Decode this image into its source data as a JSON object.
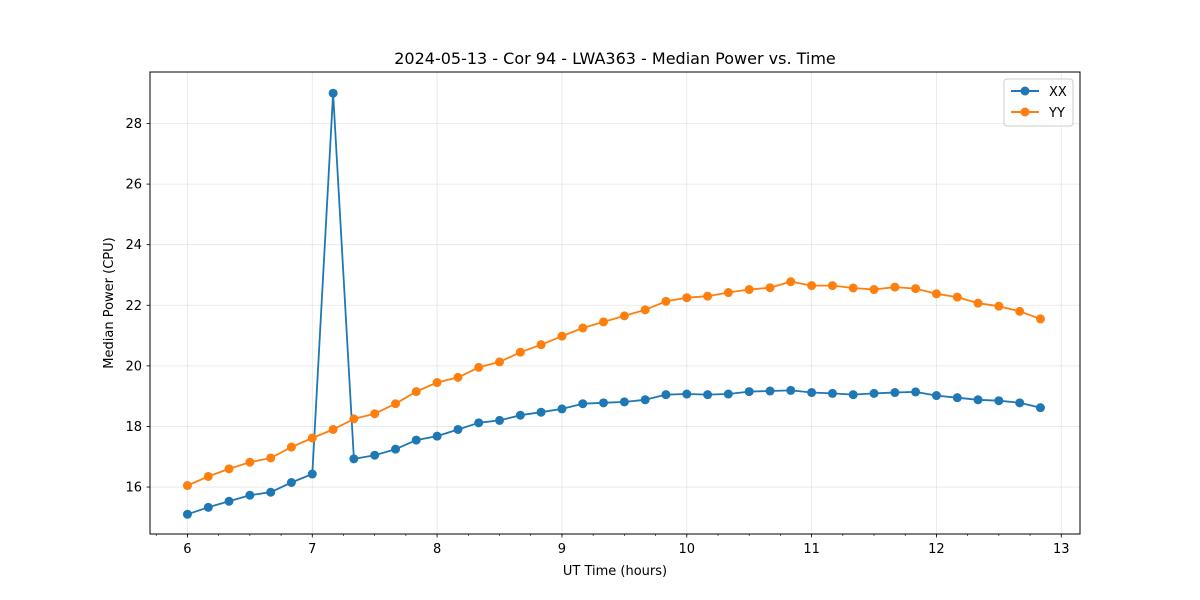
{
  "chart_data": {
    "type": "line",
    "title": "2024-05-13 - Cor 94 - LWA363 - Median Power vs. Time",
    "xlabel": "UT Time (hours)",
    "ylabel": "Median Power (CPU)",
    "xlim": [
      5.7,
      13.15
    ],
    "ylim": [
      14.45,
      29.7
    ],
    "xticks": [
      6,
      7,
      8,
      9,
      10,
      11,
      12,
      13
    ],
    "yticks": [
      16,
      18,
      20,
      22,
      24,
      26,
      28
    ],
    "x_minor_step": 0.25,
    "grid": true,
    "legend_position": "top-right",
    "x": [
      6.0,
      6.167,
      6.333,
      6.5,
      6.667,
      6.833,
      7.0,
      7.167,
      7.333,
      7.5,
      7.667,
      7.833,
      8.0,
      8.167,
      8.333,
      8.5,
      8.667,
      8.833,
      9.0,
      9.167,
      9.333,
      9.5,
      9.667,
      9.833,
      10.0,
      10.167,
      10.333,
      10.5,
      10.667,
      10.833,
      11.0,
      11.167,
      11.333,
      11.5,
      11.667,
      11.833,
      12.0,
      12.167,
      12.333,
      12.5,
      12.667,
      12.833
    ],
    "series": [
      {
        "name": "XX",
        "color": "#1f77b4",
        "values": [
          15.1,
          15.33,
          15.53,
          15.73,
          15.83,
          16.15,
          16.43,
          29.0,
          16.93,
          17.05,
          17.25,
          17.55,
          17.68,
          17.9,
          18.12,
          18.2,
          18.37,
          18.47,
          18.58,
          18.75,
          18.78,
          18.81,
          18.88,
          19.05,
          19.07,
          19.05,
          19.07,
          19.15,
          19.17,
          19.19,
          19.12,
          19.09,
          19.05,
          19.09,
          19.12,
          19.14,
          19.02,
          18.95,
          18.88,
          18.85,
          18.78,
          18.62
        ]
      },
      {
        "name": "YY",
        "color": "#ff7f0e",
        "values": [
          16.05,
          16.35,
          16.6,
          16.82,
          16.96,
          17.32,
          17.62,
          17.9,
          18.25,
          18.42,
          18.75,
          19.15,
          19.45,
          19.62,
          19.95,
          20.13,
          20.45,
          20.7,
          20.98,
          21.25,
          21.45,
          21.65,
          21.85,
          22.13,
          22.25,
          22.3,
          22.42,
          22.52,
          22.58,
          22.78,
          22.65,
          22.65,
          22.57,
          22.52,
          22.6,
          22.55,
          22.38,
          22.27,
          22.07,
          21.97,
          21.8,
          21.55
        ]
      }
    ]
  }
}
